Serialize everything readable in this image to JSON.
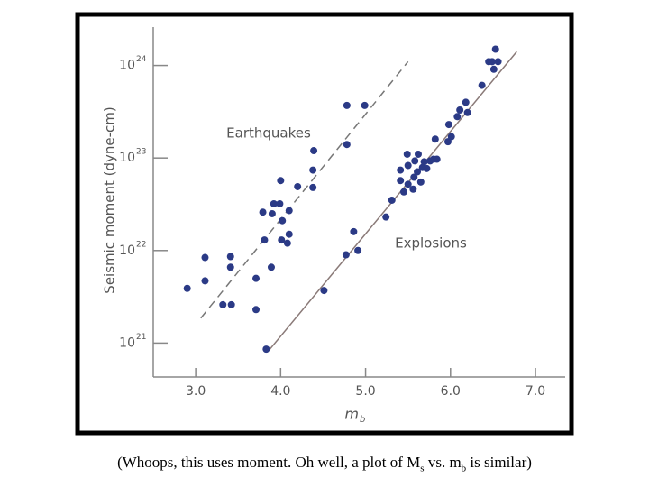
{
  "chart_data": {
    "type": "scatter",
    "ylabel": "Seismic moment (dyne-cm)",
    "xlabel": "m",
    "xlabel_sub": "b",
    "log_y": true,
    "xlim": [
      2.5,
      7.35
    ],
    "ylim": [
      4.6e+20,
      2.6e+24
    ],
    "xticks": [
      {
        "value": 3,
        "label": "3.0"
      },
      {
        "value": 4,
        "label": "4.0"
      },
      {
        "value": 5,
        "label": "5.0"
      },
      {
        "value": 6,
        "label": "6.0"
      },
      {
        "value": 7,
        "label": "7.0"
      }
    ],
    "yticks": [
      {
        "value": 1e+21,
        "label": "10",
        "sup": "21"
      },
      {
        "value": 1e+22,
        "label": "10",
        "sup": "22"
      },
      {
        "value": 1e+23,
        "label": "10",
        "sup": "23"
      },
      {
        "value": 1e+24,
        "label": "10",
        "sup": "24"
      }
    ],
    "series": [
      {
        "name": "Earthquakes",
        "color": "#2b3a86",
        "x": [
          2.9,
          3.11,
          3.11,
          3.32,
          3.41,
          3.41,
          3.42,
          3.71,
          3.71,
          3.81,
          3.79,
          3.89,
          3.92,
          3.9,
          4.0,
          3.99,
          4.02,
          4.01,
          4.08,
          4.1,
          4.1,
          4.2,
          4.38,
          4.38,
          4.39,
          4.78,
          4.78,
          4.99
        ],
        "values": [
          3.9e+21,
          8.4e+21,
          4.7e+21,
          2.6e+21,
          8.6e+21,
          6.6e+21,
          2.6e+21,
          2.3e+21,
          5e+21,
          1.3e+22,
          2.6e+22,
          6.6e+21,
          3.2e+22,
          2.5e+22,
          5.7e+22,
          3.2e+22,
          2.1e+22,
          1.3e+22,
          1.2e+22,
          2.7e+22,
          1.5e+22,
          4.9e+22,
          4.8e+22,
          7.4e+22,
          1.2e+23,
          3.7e+23,
          1.4e+23,
          3.7e+23
        ],
        "fit": {
          "x": [
            3.06,
            5.5
          ],
          "values": [
            1.86e+21,
            1.1e+24
          ],
          "color": "#777777",
          "dashed": true
        }
      },
      {
        "name": "Explosions",
        "color": "#2b3a86",
        "x": [
          3.83,
          4.51,
          4.77,
          4.86,
          4.91,
          5.24,
          5.31,
          5.41,
          5.41,
          5.45,
          5.49,
          5.5,
          5.5,
          5.56,
          5.57,
          5.58,
          5.61,
          5.62,
          5.65,
          5.67,
          5.69,
          5.72,
          5.76,
          5.8,
          5.82,
          5.84,
          5.97,
          5.98,
          6.01,
          6.08,
          6.11,
          6.18,
          6.2,
          6.37,
          6.45,
          6.49,
          6.51,
          6.53,
          6.56
        ],
        "values": [
          8.6e+20,
          3.7e+21,
          9e+21,
          1.6e+22,
          1e+22,
          2.3e+22,
          3.5e+22,
          5.7e+22,
          7.4e+22,
          4.3e+22,
          1.1e+23,
          5.2e+22,
          8.3e+22,
          4.6e+22,
          6.2e+22,
          9.3e+22,
          7.1e+22,
          1.1e+23,
          5.5e+22,
          7.9e+22,
          9.1e+22,
          7.7e+22,
          9.3e+22,
          9.7e+22,
          1.6e+23,
          9.7e+22,
          1.5e+23,
          2.3e+23,
          1.7e+23,
          2.8e+23,
          3.3e+23,
          4e+23,
          3.1e+23,
          6.1e+23,
          1.1e+24,
          1.1e+24,
          9.1e+23,
          1.5e+24,
          1.1e+24
        ],
        "fit": {
          "x": [
            3.86,
            6.78
          ],
          "values": [
            8.3e+20,
            1.41e+24
          ],
          "color": "#8a7a78",
          "dashed": false
        }
      }
    ]
  },
  "caption": {
    "part1": "(Whoops, this uses moment.  Oh well, a plot of M",
    "sub1": "s",
    "part2": " vs. m",
    "sub2": "b",
    "part3": " is similar)"
  }
}
